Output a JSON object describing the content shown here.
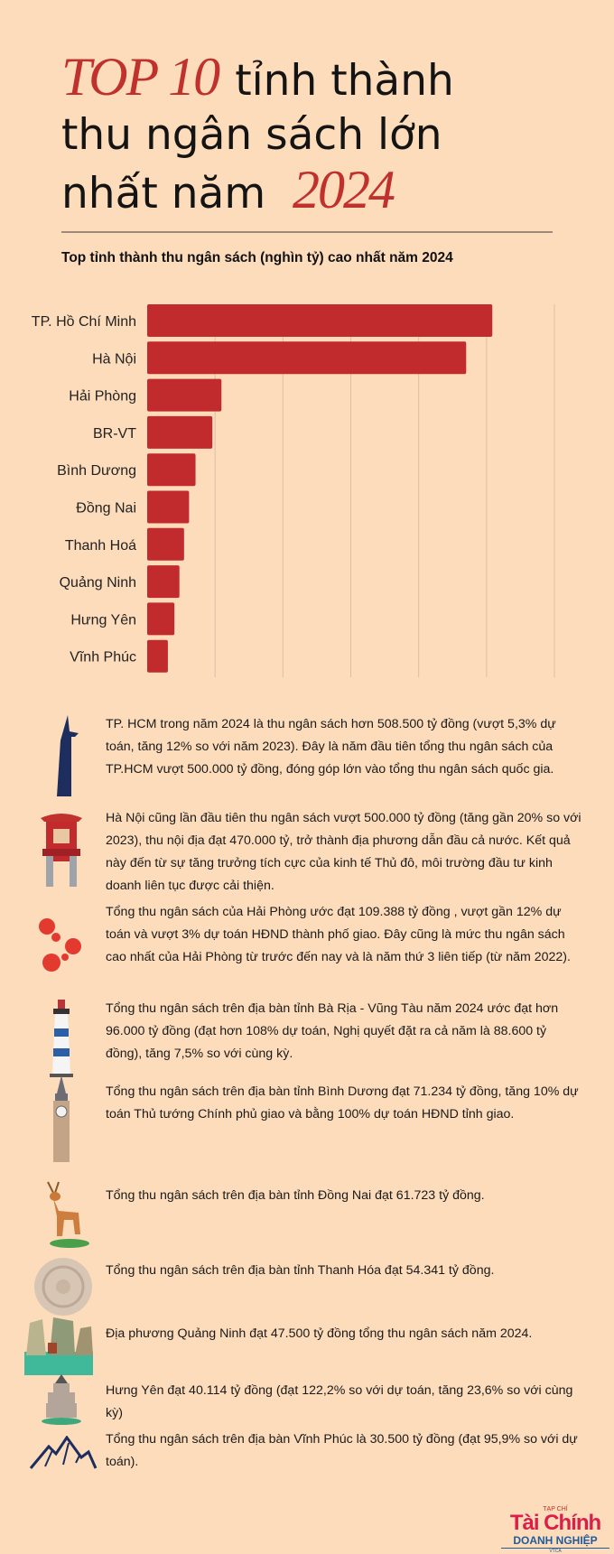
{
  "title": {
    "accent_top": "TOP 10",
    "line1_rest": "tỉnh thành",
    "line2": "thu ngân sách lớn",
    "line3_start": "nhất năm",
    "accent_year": "2024"
  },
  "colors": {
    "background": "#fddcbb",
    "accent": "#c0302c",
    "bar": "#c22b2d",
    "grid": "#d9bfa6"
  },
  "chart_data": {
    "type": "bar",
    "orientation": "horizontal",
    "title": "Top tỉnh thành thu ngân sách (nghìn tỷ) cao nhất năm 2024",
    "xlabel": "",
    "ylabel": "",
    "categories": [
      "TP. Hồ Chí Minh",
      "Hà Nội",
      "Hải Phòng",
      "BR-VT",
      "Bình Dương",
      "Đồng Nai",
      "Thanh Hoá",
      "Quảng Ninh",
      "Hưng Yên",
      "Vĩnh Phúc"
    ],
    "values": [
      508500,
      470000,
      109388,
      96000,
      71234,
      61723,
      54341,
      47500,
      40114,
      30500
    ],
    "xlim": [
      0,
      600000
    ],
    "xticks": [
      "0",
      "100000",
      "200000",
      "300000",
      "400000",
      "500000",
      "600000"
    ],
    "grid": true,
    "legend": "none"
  },
  "descriptions": [
    {
      "icon": "bitexco-tower-icon",
      "text": "TP. HCM trong năm 2024 là thu ngân sách hơn 508.500 tỷ đồng (vượt 5,3% dự toán, tăng 12% so với năm 2023). Đây là năm đầu tiên tổng thu ngân sách của TP.HCM vượt 500.000 tỷ đồng, đóng góp lớn vào tổng thu ngân sách quốc gia."
    },
    {
      "icon": "temple-gate-icon",
      "text": "Hà Nội cũng lần đầu tiên thu ngân sách vượt 500.000 tỷ đồng (tăng gần 20% so với 2023), thu nội địa đạt 470.000 tỷ, trở thành địa phương dẫn đầu cả nước. Kết quả này đến từ sự tăng trưởng tích cực của kinh tế Thủ đô, môi trường đầu tư kinh doanh liên tục được cải thiện."
    },
    {
      "icon": "phoenix-flower-icon",
      "text": "Tổng thu ngân sách của Hải Phòng ước đạt  109.388 tỷ đồng  , vượt gần 12% dự toán và vượt 3% dự toán HĐND thành phố giao. Đây cũng là mức thu ngân sách cao nhất của Hải Phòng từ trước đến nay và là năm thứ 3 liên tiếp (từ năm 2022)."
    },
    {
      "icon": "lighthouse-icon",
      "text": "Tổng thu ngân sách trên địa bàn tỉnh Bà Rịa - Vũng Tàu năm 2024 ước đạt hơn 96.000 tỷ đồng (đạt hơn 108% dự toán, Nghị quyết đặt ra cả năm là 88.600 tỷ đồng), tăng 7,5% so với cùng kỳ."
    },
    {
      "icon": "clock-tower-icon",
      "text": "Tổng thu ngân sách trên địa bàn tỉnh Bình Dương đạt 71.234 tỷ đồng, tăng 10% dự toán Thủ tướng Chính phủ giao và bằng 100% dự toán HĐND tỉnh giao."
    },
    {
      "icon": "deer-icon",
      "text": "Tổng thu ngân sách trên địa bàn tỉnh Đồng Nai đạt 61.723 tỷ đồng."
    },
    {
      "icon": "bronze-drum-icon",
      "text": "Tổng thu ngân sách trên địa bàn tỉnh Thanh Hóa đạt 54.341 tỷ đồng."
    },
    {
      "icon": "ha-long-bay-icon",
      "text": "Địa phương Quảng Ninh đạt 47.500 tỷ đồng tổng thu ngân sách năm 2024."
    },
    {
      "icon": "pagoda-tower-icon",
      "text": "Hưng Yên đạt 40.114 tỷ đồng (đạt 122,2% so với dự toán, tăng 23,6% so với cùng kỳ)"
    },
    {
      "icon": "mountain-icon",
      "text": "Tổng thu ngân sách trên địa bàn Vĩnh Phúc là 30.500 tỷ đồng (đạt 95,9% so với dự toán)."
    }
  ],
  "logo": {
    "small": "TẠP CHÍ",
    "big": "Tài Chính",
    "mid": "DOANH NGHIỆP",
    "tiny": "VTCA"
  }
}
